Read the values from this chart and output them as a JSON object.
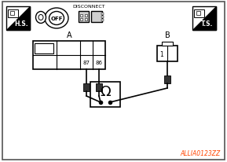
{
  "bg_color": "#ffffff",
  "border_color": "#555555",
  "text_color": "#000000",
  "orange_text_color": "#ff4400",
  "title_code": "ALLIA0123ZZ",
  "hs_label": "H.S.",
  "ts_label": "T.S.",
  "disconnect_label": "DISCONNECT",
  "connector_a_label": "A",
  "connector_b_label": "B",
  "pin_labels": [
    "87",
    "86"
  ],
  "pin_b_label": "1",
  "omega_symbol": "Ω"
}
